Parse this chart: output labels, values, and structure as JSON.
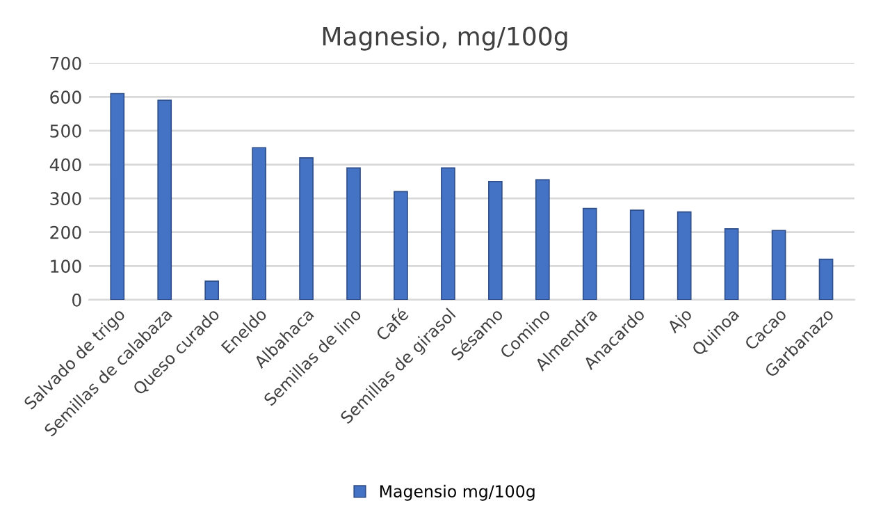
{
  "chart_data": {
    "type": "bar",
    "title": "Magnesio, mg/100g",
    "categories": [
      "Salvado de trigo",
      "Semillas de calabaza",
      "Queso curado",
      "Eneldo",
      "Albahaca",
      "Semillas de lino",
      "Café",
      "Semillas de girasol",
      "Sésamo",
      "Comino",
      "Almendra",
      "Anacardo",
      "Ajo",
      "Quinoa",
      "Cacao",
      "Garbanazo"
    ],
    "series": [
      {
        "name": "Magensio mg/100g",
        "color": "#4472c4",
        "values": [
          610,
          590,
          55,
          450,
          420,
          390,
          320,
          390,
          350,
          355,
          270,
          265,
          260,
          210,
          205,
          120
        ]
      }
    ],
    "ylim": [
      0,
      700
    ],
    "yticks": [
      0,
      100,
      200,
      300,
      400,
      500,
      600,
      700
    ],
    "grid": "y",
    "legend": "bottom"
  }
}
